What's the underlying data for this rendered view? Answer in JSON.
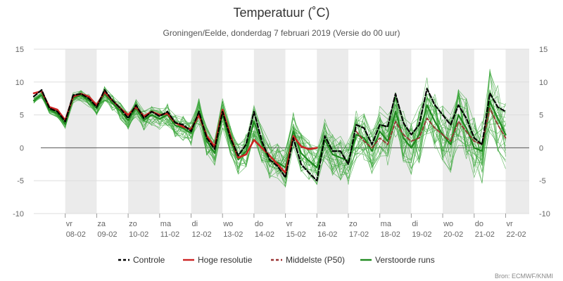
{
  "chart_data": {
    "type": "line",
    "title": "Temperatuur (˚C)",
    "subtitle": "Groningen/Eelde, donderdag 7 februari 2019 (Versie do 00 uur)",
    "credit": "Bron: ECMWF/KNMI",
    "xlabel": "",
    "ylabel": "",
    "ylim": [
      -10,
      15
    ],
    "yticks": [
      "15",
      "10",
      "5",
      "0",
      "-5",
      "-10"
    ],
    "xlim": [
      0,
      15.75
    ],
    "x_step_days": 0.25,
    "days": [
      {
        "dow": "vr",
        "date": "08-02"
      },
      {
        "dow": "za",
        "date": "09-02"
      },
      {
        "dow": "zo",
        "date": "10-02"
      },
      {
        "dow": "ma",
        "date": "11-02"
      },
      {
        "dow": "di",
        "date": "12-02"
      },
      {
        "dow": "wo",
        "date": "13-02"
      },
      {
        "dow": "do",
        "date": "14-02"
      },
      {
        "dow": "vr",
        "date": "15-02"
      },
      {
        "dow": "za",
        "date": "16-02"
      },
      {
        "dow": "zo",
        "date": "17-02"
      },
      {
        "dow": "ma",
        "date": "18-02"
      },
      {
        "dow": "di",
        "date": "19-02"
      },
      {
        "dow": "wo",
        "date": "20-02"
      },
      {
        "dow": "do",
        "date": "21-02"
      },
      {
        "dow": "vr",
        "date": "22-02"
      }
    ],
    "legend_position": "bottom",
    "series": [
      {
        "name": "Controle",
        "color": "#000000",
        "style": "dashed",
        "values": [
          7.8,
          8.8,
          6.0,
          5.5,
          4.0,
          8.0,
          8.2,
          7.5,
          6.2,
          8.8,
          7.2,
          6.0,
          4.5,
          6.5,
          4.5,
          5.5,
          4.8,
          5.5,
          3.8,
          3.5,
          2.5,
          5.5,
          1.5,
          -0.2,
          5.5,
          1.5,
          -1.2,
          0.5,
          5.5,
          1.0,
          -1.8,
          -2.8,
          -4.5,
          1.5,
          -2.5,
          -3.8,
          -5.0,
          1.8,
          -0.5,
          -0.5,
          -2.5,
          3.5,
          3.0,
          0.5,
          3.5,
          3.2,
          8.2,
          3.8,
          2.0,
          3.5,
          9.0,
          6.5,
          5.0,
          3.5,
          6.5,
          4.5,
          1.5,
          0.5,
          8.3,
          6.2,
          5.5
        ]
      },
      {
        "name": "Hoge resolutie",
        "color": "#cc2222",
        "style": "solid",
        "values": [
          8.3,
          8.6,
          6.2,
          5.8,
          4.2,
          7.8,
          8.2,
          7.8,
          6.5,
          8.5,
          7.2,
          6.0,
          5.0,
          6.2,
          4.8,
          5.5,
          5.0,
          5.2,
          3.8,
          3.2,
          2.8,
          5.0,
          1.8,
          0.2,
          5.8,
          1.8,
          -1.5,
          -1.0,
          1.2,
          0.0,
          -1.2,
          -2.5,
          -3.8,
          1.8,
          0.2,
          -0.2,
          0.0
        ]
      },
      {
        "name": "Middelste (P50)",
        "color": "#993333",
        "style": "dashed",
        "values": [
          null,
          null,
          null,
          null,
          null,
          null,
          null,
          null,
          null,
          null,
          null,
          null,
          null,
          null,
          null,
          null,
          null,
          null,
          null,
          null,
          null,
          null,
          null,
          null,
          null,
          null,
          null,
          null,
          null,
          null,
          null,
          null,
          null,
          null,
          null,
          null,
          null,
          null,
          null,
          null,
          null,
          2.5,
          1.0,
          0.0,
          1.5,
          0.5,
          4.0,
          2.0,
          1.0,
          1.5,
          4.5,
          3.0,
          2.0,
          1.0,
          4.0,
          2.5,
          1.0,
          0.5,
          6.0,
          3.5,
          1.5
        ]
      },
      {
        "name": "Verstoorde runs",
        "color": "#2e8b2e",
        "style": "solid",
        "values": [
          7.2,
          8.0,
          5.8,
          5.2,
          3.6,
          7.6,
          8.0,
          7.2,
          6.0,
          8.2,
          6.8,
          5.6,
          4.2,
          6.0,
          4.2,
          5.0,
          4.4,
          5.0,
          3.4,
          3.0,
          2.2,
          5.6,
          1.0,
          -0.8,
          5.2,
          1.0,
          -1.8,
          -0.5,
          4.0,
          0.5,
          -2.0,
          -2.2,
          -3.0,
          2.5,
          -0.8,
          -2.0,
          -3.0,
          1.2,
          -1.0,
          -1.5,
          -2.0,
          2.0,
          1.5,
          -0.5,
          2.5,
          1.0,
          5.5,
          1.5,
          0.0,
          2.0,
          6.5,
          4.0,
          2.0,
          0.5,
          5.0,
          3.0,
          0.0,
          -0.5,
          7.0,
          4.5,
          2.0
        ]
      }
    ]
  }
}
